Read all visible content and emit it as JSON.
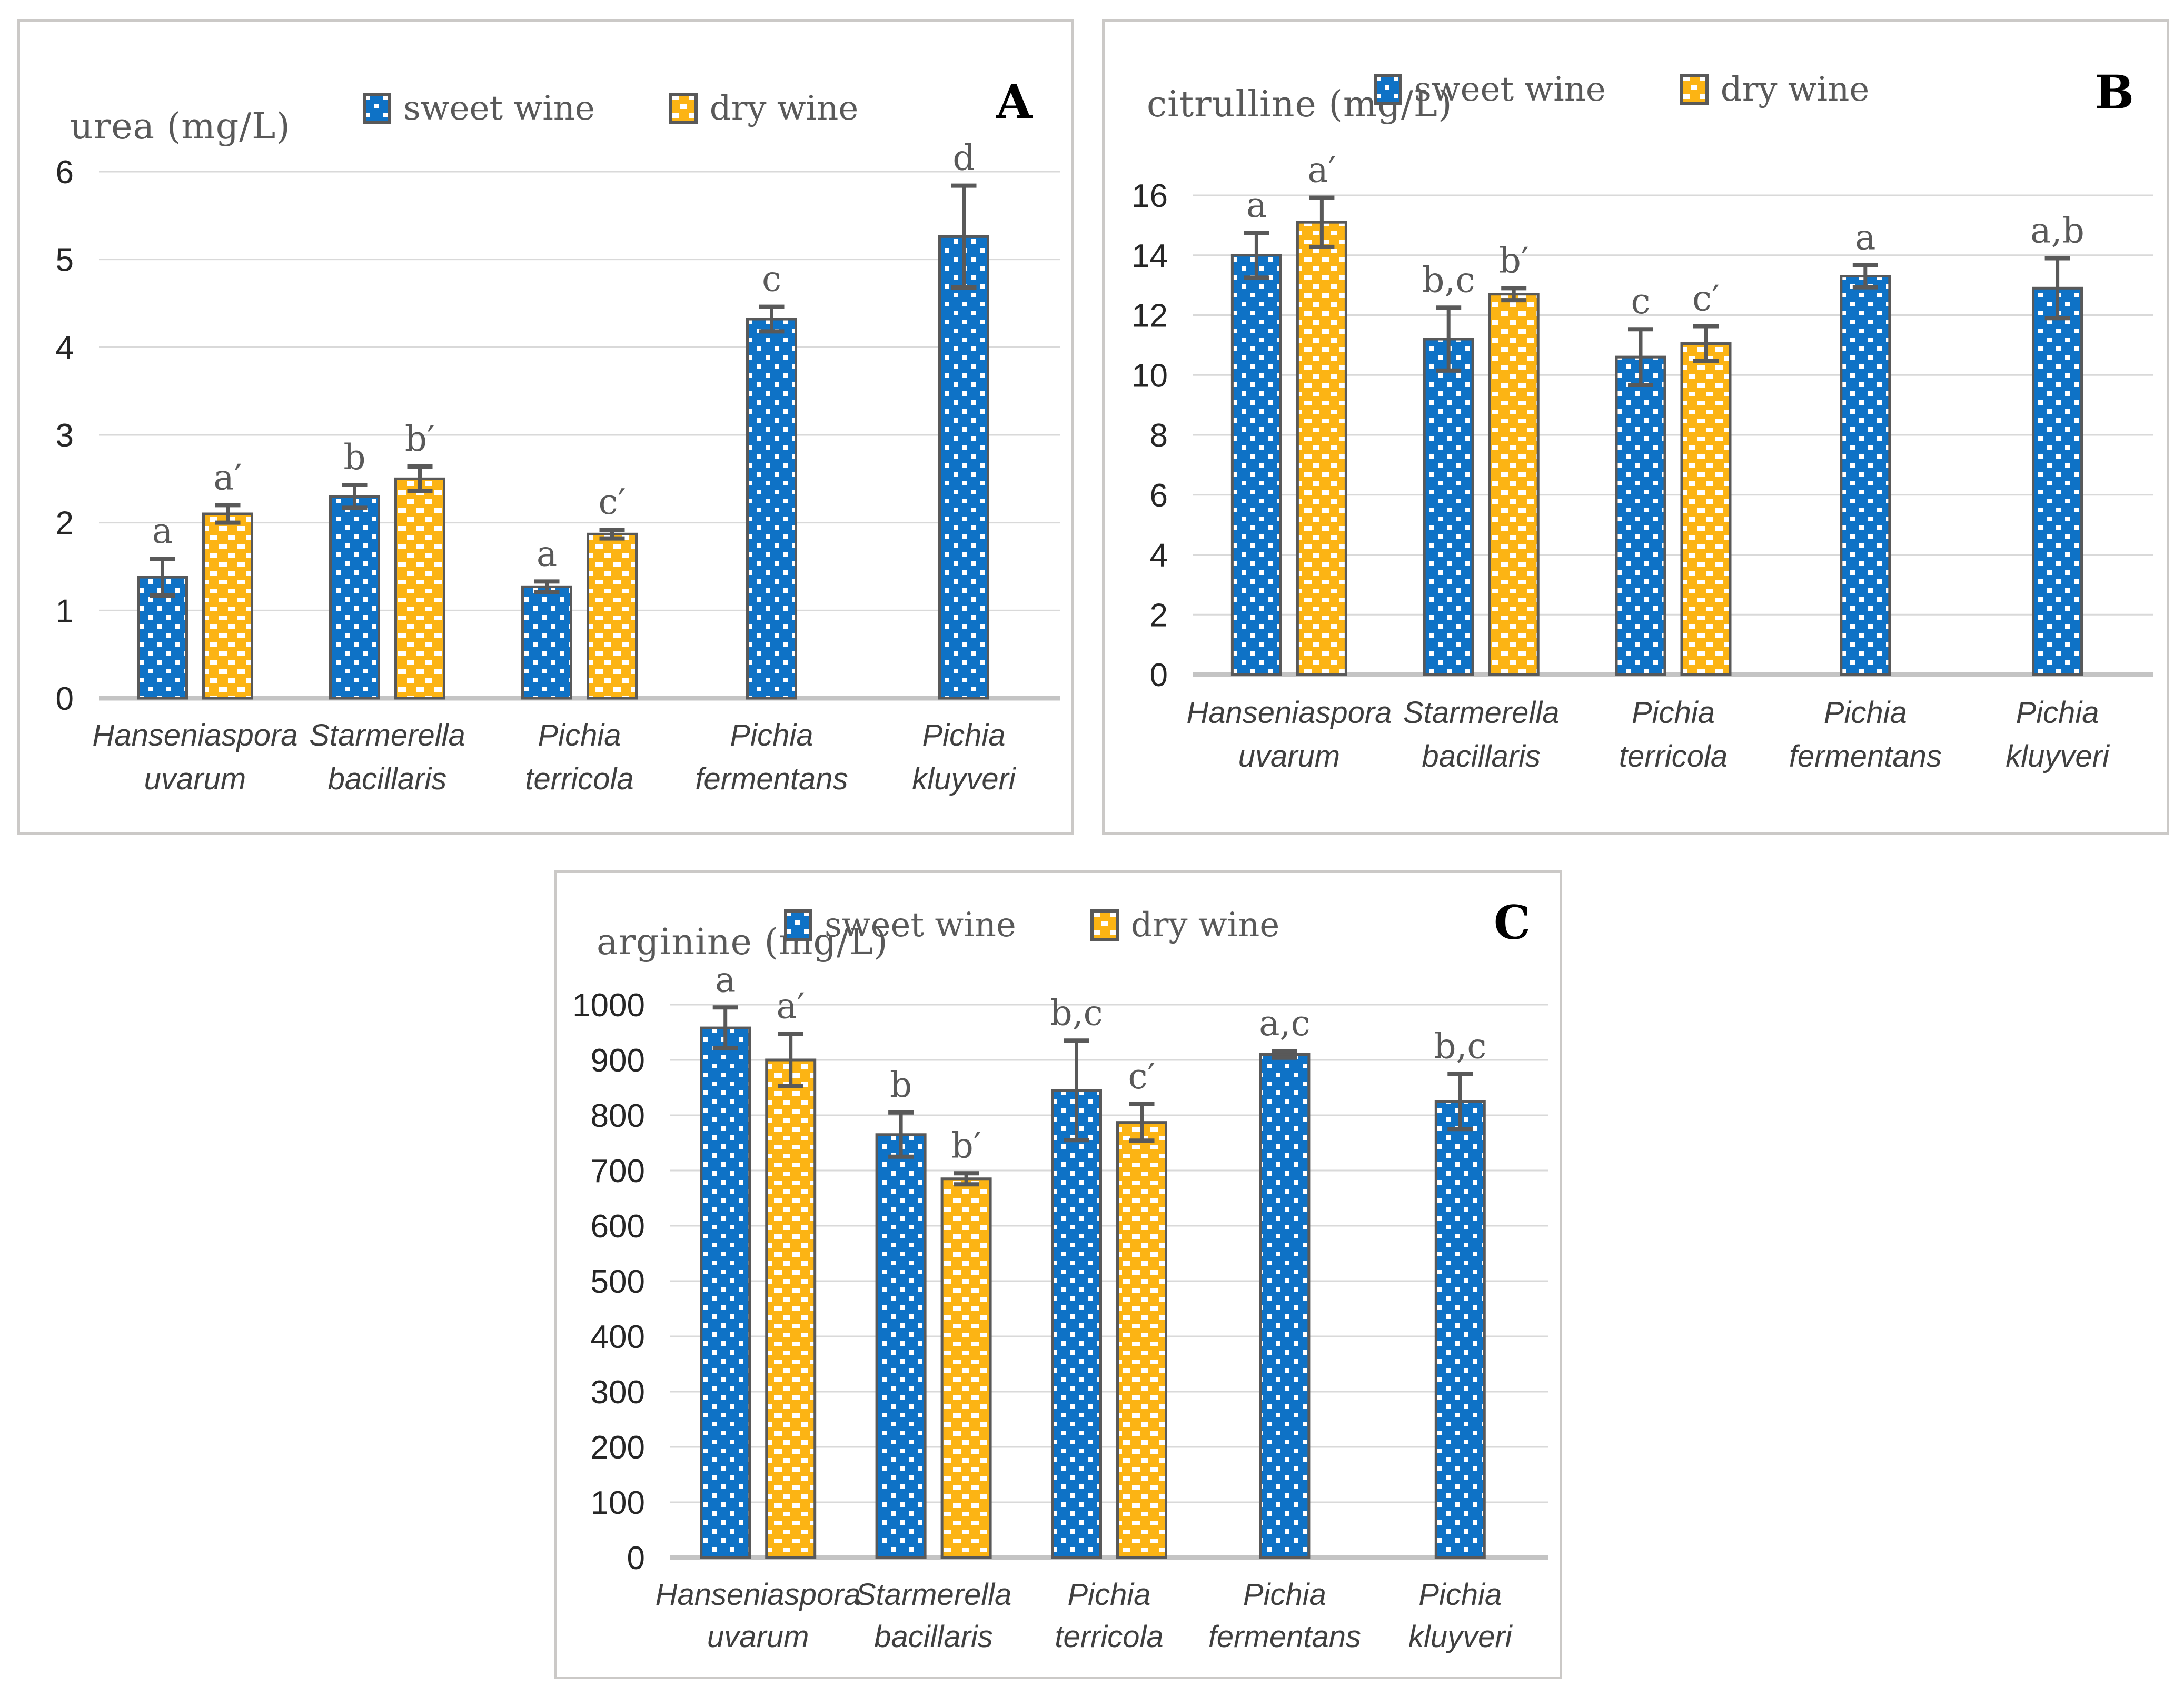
{
  "colors": {
    "sweet_blue": "#0E72C6",
    "dry_orange": "#FCB414",
    "bar_border": "#595959",
    "error_bar": "#595959",
    "grid": "#D9D9D9",
    "axis_line": "#C4C4C4",
    "title_text": "#595959",
    "tick_text": "#262626",
    "category_text": "#3F3F3F",
    "panel_border": "#CBC9C7"
  },
  "chart_data": [
    {
      "type": "bar",
      "panel_letter": "A",
      "title": "urea (mg/L)",
      "legend": [
        "sweet wine",
        "dry wine"
      ],
      "legend_position": "top",
      "grid": true,
      "ylim": [
        0,
        6
      ],
      "ystep": 1,
      "categories": [
        [
          "Hanseniaspora",
          "uvarum"
        ],
        [
          "Starmerella",
          "bacillaris"
        ],
        [
          "Pichia",
          "terricola"
        ],
        [
          "Pichia",
          "fermentans"
        ],
        [
          "Pichia",
          "kluyveri"
        ]
      ],
      "series": [
        {
          "name": "sweet wine",
          "values": [
            1.38,
            2.3,
            1.27,
            4.32,
            5.26
          ],
          "errors": [
            0.21,
            0.13,
            0.06,
            0.14,
            0.58
          ],
          "sig_labels": [
            "a",
            "b",
            "a",
            "c",
            "d"
          ]
        },
        {
          "name": "dry wine",
          "values": [
            2.1,
            2.5,
            1.87,
            null,
            null
          ],
          "errors": [
            0.1,
            0.14,
            0.05,
            null,
            null
          ],
          "sig_labels": [
            "a′",
            "b′",
            "c′",
            null,
            null
          ]
        }
      ]
    },
    {
      "type": "bar",
      "panel_letter": "B",
      "title": "citrulline (mg/L)",
      "legend": [
        "sweet wine",
        "dry wine"
      ],
      "legend_position": "top",
      "grid": true,
      "ylim": [
        0,
        16
      ],
      "ystep": 2,
      "categories": [
        [
          "Hanseniaspora",
          "uvarum"
        ],
        [
          "Starmerella",
          "bacillaris"
        ],
        [
          "Pichia",
          "terricola"
        ],
        [
          "Pichia",
          "fermentans"
        ],
        [
          "Pichia",
          "kluyveri"
        ]
      ],
      "series": [
        {
          "name": "sweet wine",
          "values": [
            14.0,
            11.2,
            10.6,
            13.3,
            12.9
          ],
          "errors": [
            0.75,
            1.05,
            0.93,
            0.37,
            1.0
          ],
          "sig_labels": [
            "a",
            "b,c",
            "c",
            "a",
            "a,b"
          ]
        },
        {
          "name": "dry wine",
          "values": [
            15.1,
            12.7,
            11.05,
            null,
            null
          ],
          "errors": [
            0.82,
            0.2,
            0.58,
            null,
            null
          ],
          "sig_labels": [
            "a′",
            "b′",
            "c′",
            null,
            null
          ]
        }
      ]
    },
    {
      "type": "bar",
      "panel_letter": "C",
      "title": "arginine (mg/L)",
      "legend": [
        "sweet wine",
        "dry wine"
      ],
      "legend_position": "top",
      "grid": true,
      "ylim": [
        0,
        1000
      ],
      "ystep": 100,
      "categories": [
        [
          "Hanseniaspora",
          "uvarum"
        ],
        [
          "Starmerella",
          "bacillaris"
        ],
        [
          "Pichia",
          "terricola"
        ],
        [
          "Pichia",
          "fermentans"
        ],
        [
          "Pichia",
          "kluyveri"
        ]
      ],
      "series": [
        {
          "name": "sweet wine",
          "values": [
            958,
            765,
            845,
            910,
            825
          ],
          "errors": [
            37,
            40,
            90,
            6,
            50
          ],
          "sig_labels": [
            "a",
            "b",
            "b,c",
            "a,c",
            "b,c"
          ]
        },
        {
          "name": "dry wine",
          "values": [
            900,
            685,
            787,
            null,
            null
          ],
          "errors": [
            47,
            10,
            33,
            null,
            null
          ],
          "sig_labels": [
            "a′",
            "b′",
            "c′",
            null,
            null
          ]
        }
      ]
    }
  ]
}
